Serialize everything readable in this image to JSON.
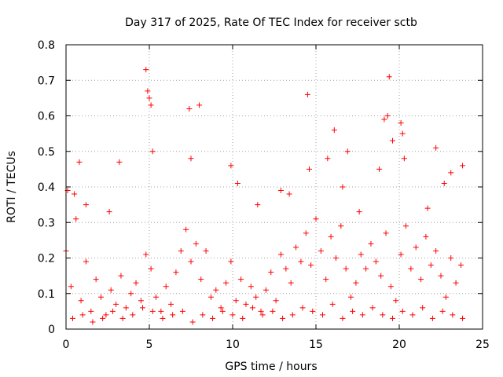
{
  "chart_data": {
    "type": "scatter",
    "title": "Day 317 of 2025, Rate Of TEC Index for receiver sctb",
    "xlabel": "GPS time / hours",
    "ylabel": "ROTI / TECUs",
    "xlim": [
      0,
      25
    ],
    "ylim": [
      0,
      0.8
    ],
    "xticks": [
      0,
      5,
      10,
      15,
      20,
      25
    ],
    "xtick_labels": [
      "0",
      "5",
      "10",
      "15",
      "20",
      "25"
    ],
    "yticks": [
      0,
      0.1,
      0.2,
      0.3,
      0.4,
      0.5,
      0.6,
      0.7,
      0.8
    ],
    "ytick_labels": [
      "0",
      "0.1",
      "0.2",
      "0.3",
      "0.4",
      "0.5",
      "0.6",
      "0.7",
      "0.8"
    ],
    "grid": true,
    "marker": "plus",
    "color": "#ff0000",
    "series": [
      {
        "name": "ROTI",
        "x": [
          0.0,
          0.3,
          0.6,
          0.9,
          1.2,
          1.5,
          1.8,
          2.1,
          2.4,
          2.7,
          3.0,
          3.3,
          3.6,
          3.9,
          4.2,
          4.5,
          4.8,
          5.1,
          5.4,
          5.7,
          6.0,
          6.3,
          6.6,
          6.9,
          7.2,
          7.5,
          7.8,
          8.1,
          8.4,
          8.7,
          9.0,
          9.3,
          9.6,
          9.9,
          10.2,
          10.5,
          10.8,
          11.1,
          11.4,
          11.7,
          12.0,
          12.3,
          12.6,
          12.9,
          13.2,
          13.5,
          13.8,
          14.1,
          14.4,
          14.7,
          15.0,
          15.3,
          15.6,
          15.9,
          16.2,
          16.5,
          16.8,
          17.1,
          17.4,
          17.7,
          18.0,
          18.3,
          18.6,
          18.9,
          19.2,
          19.5,
          19.8,
          20.1,
          20.4,
          20.7,
          21.0,
          21.3,
          21.6,
          21.9,
          22.2,
          22.5,
          22.8,
          23.1,
          23.4,
          23.7,
          0.1,
          0.5,
          0.8,
          4.8,
          4.9,
          5.0,
          5.1,
          5.2,
          7.4,
          7.5,
          8.0,
          9.9,
          10.3,
          14.5,
          14.6,
          16.1,
          16.9,
          18.8,
          19.1,
          19.3,
          19.4,
          19.6,
          20.1,
          20.2,
          20.3,
          22.2,
          23.1,
          23.8,
          3.2,
          1.2,
          2.6,
          11.5,
          12.9,
          13.4,
          15.7,
          16.6,
          17.6,
          21.7,
          22.7,
          0.4,
          1.0,
          1.6,
          2.2,
          2.8,
          3.4,
          4.0,
          4.6,
          5.2,
          5.8,
          6.4,
          7.0,
          7.6,
          8.2,
          8.8,
          9.4,
          10.0,
          10.6,
          11.2,
          11.8,
          12.4,
          13.0,
          13.6,
          14.2,
          14.8,
          15.4,
          16.0,
          16.6,
          17.2,
          17.8,
          18.4,
          19.0,
          19.6,
          20.2,
          20.8,
          21.4,
          22.0,
          22.6,
          23.2,
          23.8
        ],
        "y": [
          0.22,
          0.12,
          0.31,
          0.08,
          0.19,
          0.05,
          0.14,
          0.09,
          0.04,
          0.11,
          0.07,
          0.15,
          0.06,
          0.1,
          0.13,
          0.08,
          0.21,
          0.17,
          0.09,
          0.05,
          0.12,
          0.07,
          0.16,
          0.22,
          0.28,
          0.19,
          0.24,
          0.14,
          0.22,
          0.09,
          0.11,
          0.06,
          0.13,
          0.19,
          0.08,
          0.14,
          0.07,
          0.12,
          0.09,
          0.05,
          0.11,
          0.16,
          0.08,
          0.21,
          0.17,
          0.13,
          0.23,
          0.19,
          0.27,
          0.18,
          0.31,
          0.22,
          0.14,
          0.26,
          0.2,
          0.29,
          0.17,
          0.09,
          0.13,
          0.21,
          0.17,
          0.24,
          0.19,
          0.15,
          0.27,
          0.12,
          0.08,
          0.21,
          0.29,
          0.17,
          0.23,
          0.14,
          0.26,
          0.18,
          0.22,
          0.15,
          0.09,
          0.2,
          0.13,
          0.18,
          0.39,
          0.38,
          0.47,
          0.73,
          0.67,
          0.65,
          0.63,
          0.5,
          0.62,
          0.48,
          0.63,
          0.46,
          0.41,
          0.66,
          0.45,
          0.56,
          0.5,
          0.45,
          0.59,
          0.6,
          0.71,
          0.53,
          0.58,
          0.55,
          0.48,
          0.51,
          0.44,
          0.46,
          0.47,
          0.35,
          0.33,
          0.35,
          0.39,
          0.38,
          0.48,
          0.4,
          0.33,
          0.34,
          0.41,
          0.03,
          0.04,
          0.02,
          0.03,
          0.05,
          0.03,
          0.04,
          0.06,
          0.05,
          0.03,
          0.04,
          0.05,
          0.02,
          0.04,
          0.03,
          0.05,
          0.04,
          0.03,
          0.06,
          0.04,
          0.05,
          0.03,
          0.04,
          0.06,
          0.05,
          0.04,
          0.07,
          0.03,
          0.05,
          0.04,
          0.06,
          0.04,
          0.03,
          0.05,
          0.04,
          0.06,
          0.03,
          0.05,
          0.04,
          0.03
        ]
      }
    ]
  }
}
